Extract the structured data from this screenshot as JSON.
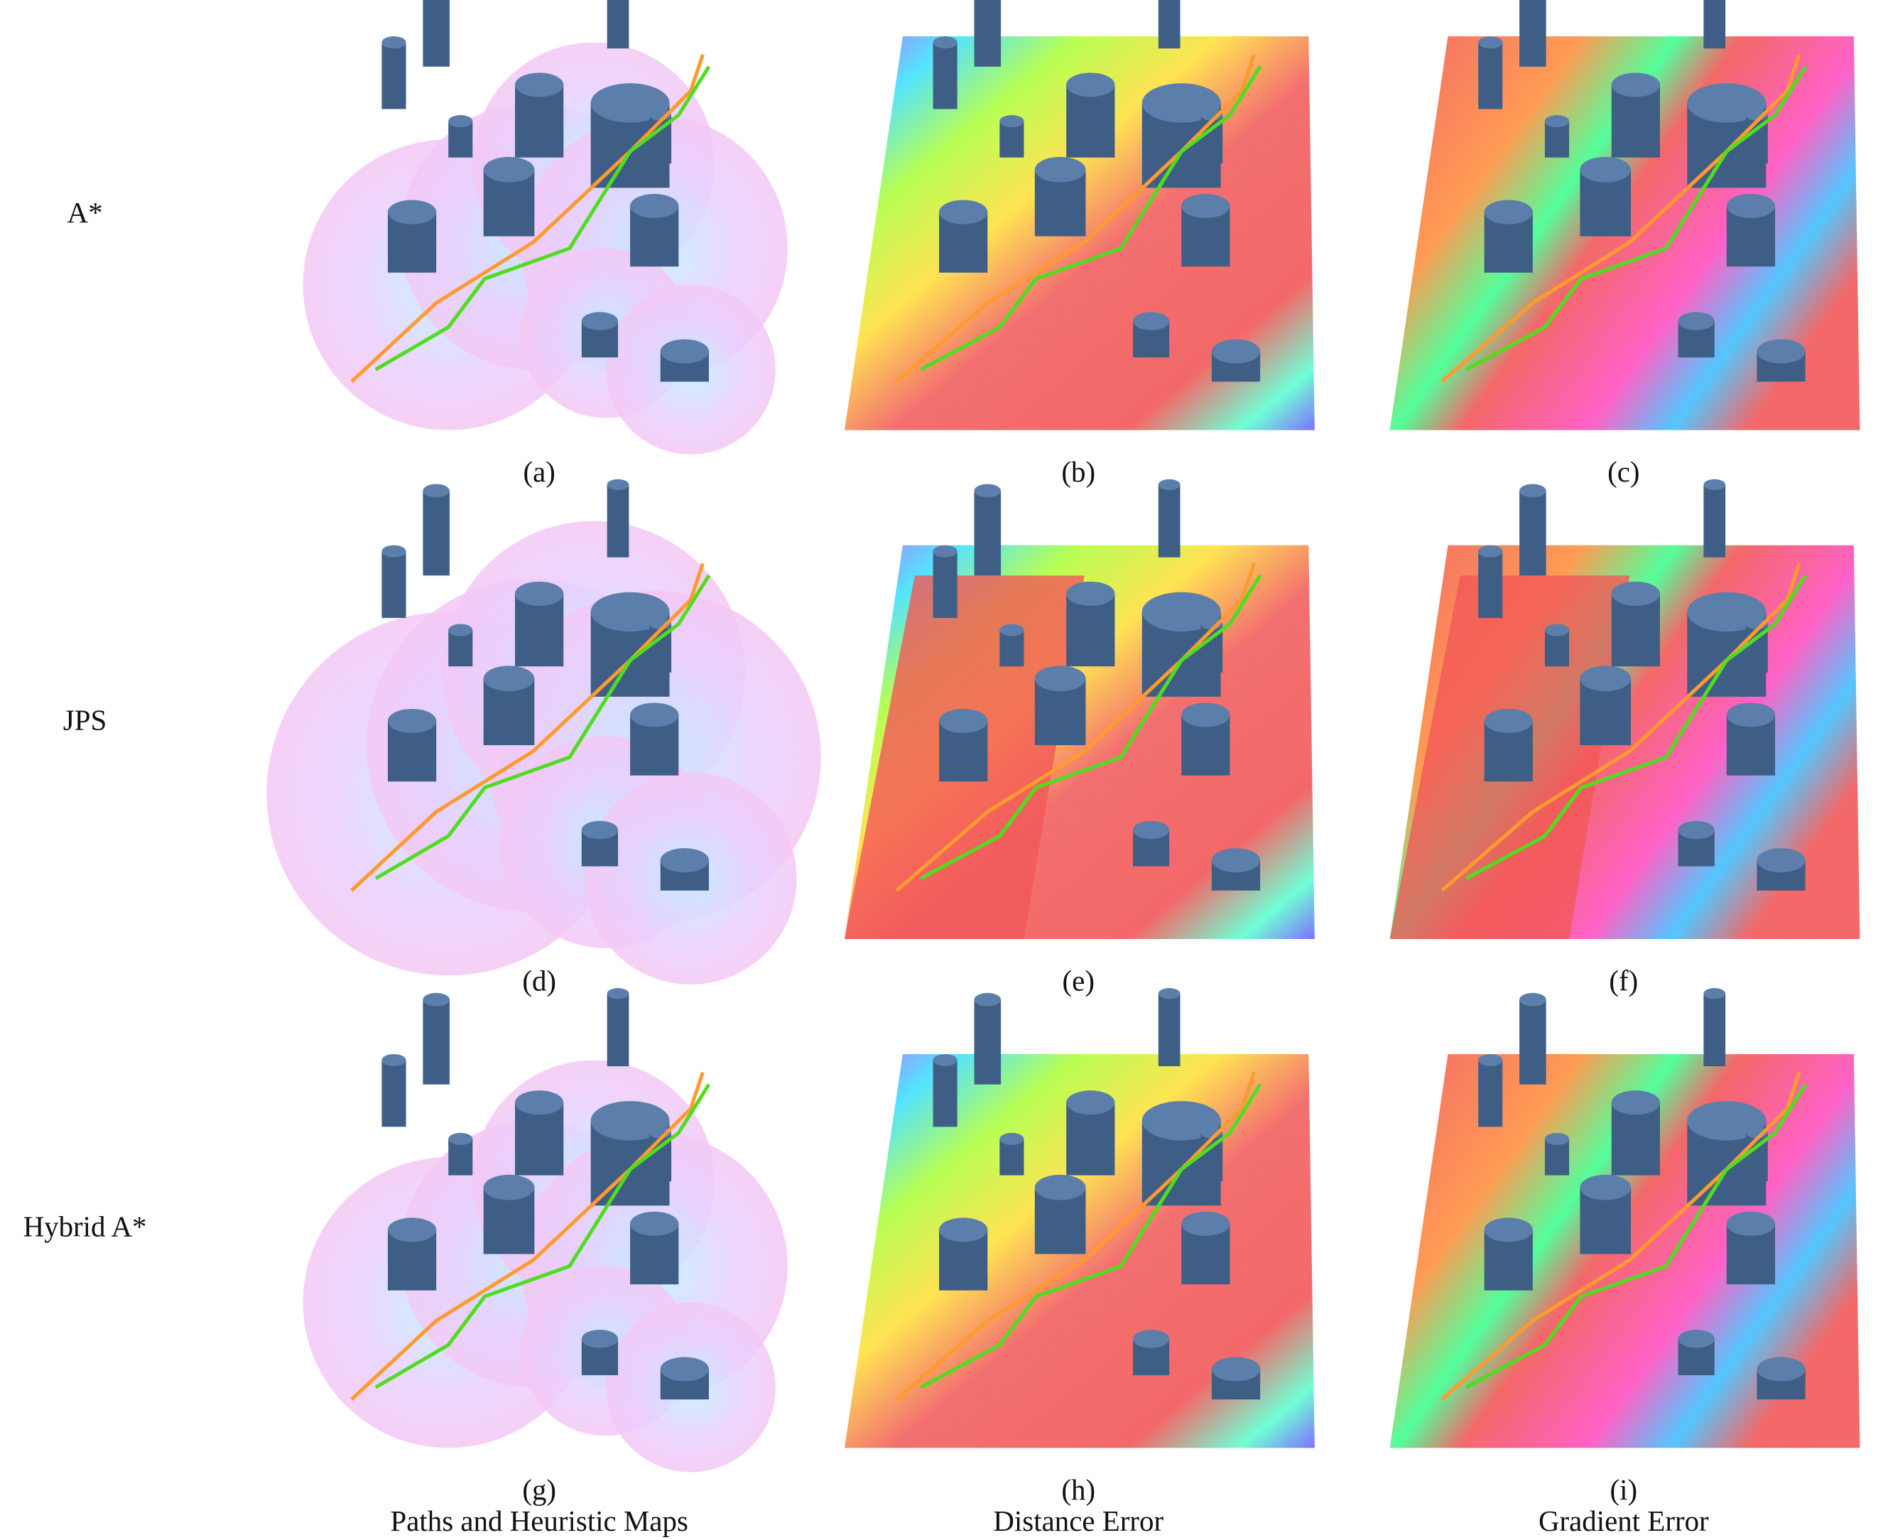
{
  "rows": [
    "A*",
    "JPS",
    "Hybrid A*"
  ],
  "panels": [
    "(a)",
    "(b)",
    "(c)",
    "(d)",
    "(e)",
    "(f)",
    "(g)",
    "(h)",
    "(i)"
  ],
  "captions": [
    "Paths and Heuristic Maps",
    "Distance Error",
    "Gradient Error"
  ]
}
